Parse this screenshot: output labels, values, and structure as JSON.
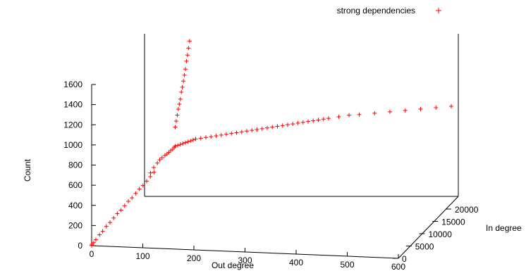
{
  "chart_data": {
    "type": "scatter",
    "title": "",
    "xlabel": "Out degree",
    "ylabel": "In degree",
    "zlabel": "Count",
    "xlim": [
      0,
      600
    ],
    "ylim": [
      0,
      20000
    ],
    "zlim": [
      0,
      1600
    ],
    "x_ticks": [
      "0",
      "100",
      "200",
      "300",
      "400",
      "500",
      "600"
    ],
    "y_ticks": [
      "0",
      "5000",
      "10000",
      "15000",
      "20000"
    ],
    "z_ticks": [
      "0",
      "200",
      "400",
      "600",
      "800",
      "1000",
      "1200",
      "1400",
      "1600"
    ],
    "legend_position": "top-right",
    "grid": false,
    "series": [
      {
        "name": "strong dependencies",
        "color": "#ff0000",
        "marker": "plus",
        "points": [
          [
            0,
            0,
            1
          ],
          [
            0,
            0,
            3
          ],
          [
            0,
            100,
            12
          ],
          [
            2,
            400,
            20
          ],
          [
            3,
            1000,
            35
          ],
          [
            5,
            2000,
            60
          ],
          [
            6,
            3000,
            70
          ],
          [
            8,
            4000,
            95
          ],
          [
            10,
            5000,
            110
          ],
          [
            12,
            6000,
            130
          ],
          [
            14,
            7000,
            150
          ],
          [
            16,
            8000,
            160
          ],
          [
            18,
            9000,
            180
          ],
          [
            20,
            10000,
            200
          ],
          [
            22,
            11000,
            210
          ],
          [
            24,
            12000,
            230
          ],
          [
            26,
            13000,
            250
          ],
          [
            28,
            14000,
            260
          ],
          [
            30,
            15000,
            280
          ],
          [
            32,
            16000,
            300
          ],
          [
            34,
            17000,
            320
          ],
          [
            35,
            15500,
            350
          ],
          [
            36,
            16500,
            380
          ],
          [
            38,
            17500,
            400
          ],
          [
            40,
            18000,
            420
          ],
          [
            42,
            18500,
            430
          ],
          [
            45,
            19000,
            440
          ],
          [
            48,
            19200,
            450
          ],
          [
            50,
            19500,
            460
          ],
          [
            52,
            19800,
            470
          ],
          [
            55,
            20000,
            480
          ],
          [
            58,
            20000,
            500
          ],
          [
            60,
            20000,
            510
          ],
          [
            65,
            20000,
            520
          ],
          [
            70,
            20000,
            530
          ],
          [
            75,
            20000,
            540
          ],
          [
            80,
            20000,
            550
          ],
          [
            85,
            20000,
            560
          ],
          [
            90,
            20000,
            570
          ],
          [
            95,
            20000,
            580
          ],
          [
            100,
            20000,
            590
          ],
          [
            110,
            20000,
            600
          ],
          [
            120,
            20000,
            610
          ],
          [
            130,
            20000,
            620
          ],
          [
            140,
            20000,
            630
          ],
          [
            150,
            20000,
            640
          ],
          [
            160,
            20000,
            650
          ],
          [
            170,
            20000,
            660
          ],
          [
            180,
            20000,
            670
          ],
          [
            190,
            20000,
            680
          ],
          [
            200,
            20000,
            690
          ],
          [
            210,
            20000,
            700
          ],
          [
            220,
            20000,
            710
          ],
          [
            230,
            20000,
            720
          ],
          [
            240,
            20000,
            730
          ],
          [
            250,
            20000,
            740
          ],
          [
            260,
            20000,
            750
          ],
          [
            270,
            20000,
            760
          ],
          [
            280,
            20000,
            770
          ],
          [
            290,
            20000,
            780
          ],
          [
            300,
            20000,
            790
          ],
          [
            310,
            20000,
            800
          ],
          [
            320,
            20000,
            810
          ],
          [
            330,
            20000,
            820
          ],
          [
            340,
            20000,
            830
          ],
          [
            350,
            20000,
            840
          ],
          [
            360,
            20000,
            850
          ],
          [
            380,
            20000,
            870
          ],
          [
            400,
            20000,
            890
          ],
          [
            420,
            20000,
            900
          ],
          [
            450,
            20000,
            920
          ],
          [
            480,
            20000,
            940
          ],
          [
            510,
            20000,
            960
          ],
          [
            540,
            20000,
            980
          ],
          [
            570,
            20000,
            1000
          ],
          [
            600,
            20000,
            1020
          ],
          [
            60,
            20000,
            700
          ],
          [
            62,
            20000,
            760
          ],
          [
            64,
            20000,
            820
          ],
          [
            66,
            20000,
            880
          ],
          [
            68,
            20000,
            930
          ],
          [
            70,
            20000,
            980
          ],
          [
            72,
            20000,
            1050
          ],
          [
            74,
            20000,
            1100
          ],
          [
            76,
            20000,
            1160
          ],
          [
            78,
            20000,
            1220
          ],
          [
            80,
            20000,
            1280
          ],
          [
            82,
            20000,
            1360
          ],
          [
            84,
            20000,
            1420
          ],
          [
            86,
            20000,
            1490
          ],
          [
            88,
            20000,
            1560
          ]
        ]
      }
    ]
  }
}
